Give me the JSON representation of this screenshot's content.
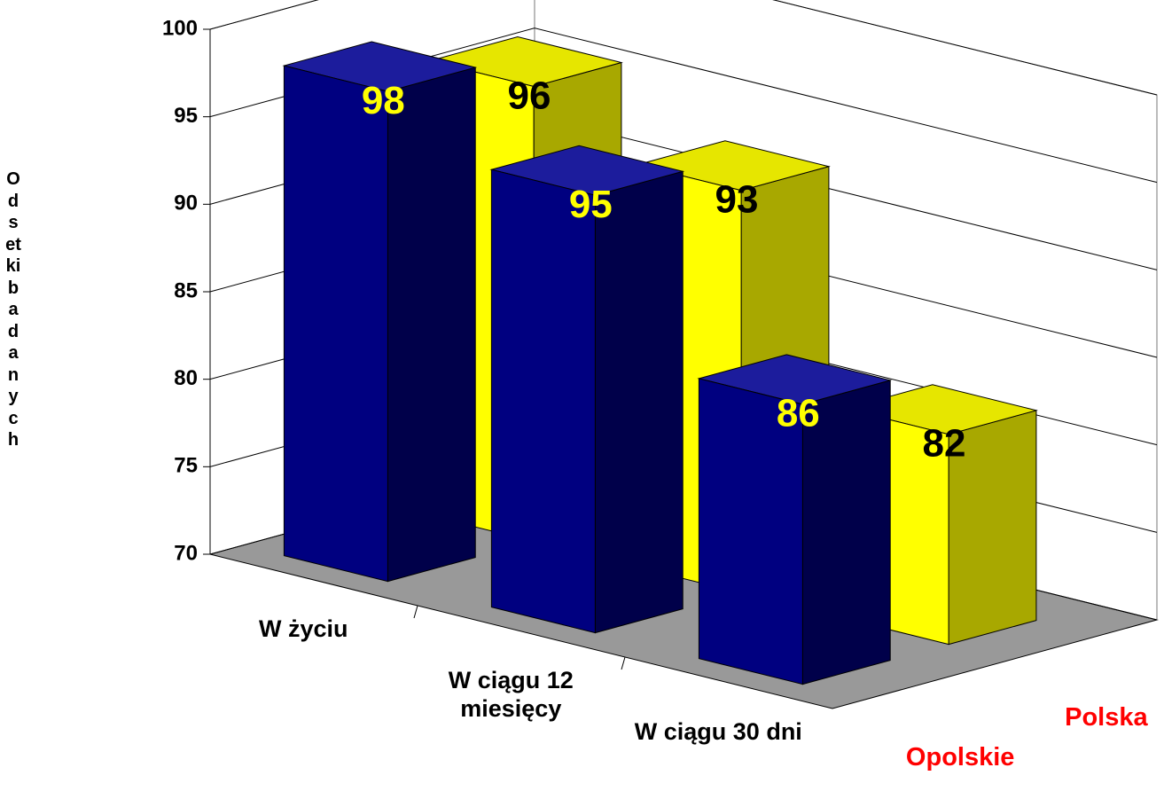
{
  "chart_data": {
    "type": "bar3d",
    "y_label": "Odsetki badanych",
    "categories": [
      "W życiu",
      "W ciągu 12 miesięcy",
      "W ciągu 30 dni"
    ],
    "series": [
      {
        "name": "Opolskie",
        "color": "#000080",
        "side_color": "#00004a",
        "top_color": "#1c1c9c",
        "label_color": "#ffff00",
        "values": [
          98,
          95,
          86
        ]
      },
      {
        "name": "Polska",
        "color": "#ffff00",
        "side_color": "#a8a800",
        "top_color": "#e6e600",
        "label_color": "#000000",
        "values": [
          96,
          93,
          82
        ]
      }
    ],
    "series_label_color": "#ff0000",
    "ylim": [
      70,
      100
    ],
    "yticks": [
      70,
      75,
      80,
      85,
      90,
      95,
      100
    ],
    "grid": true
  }
}
